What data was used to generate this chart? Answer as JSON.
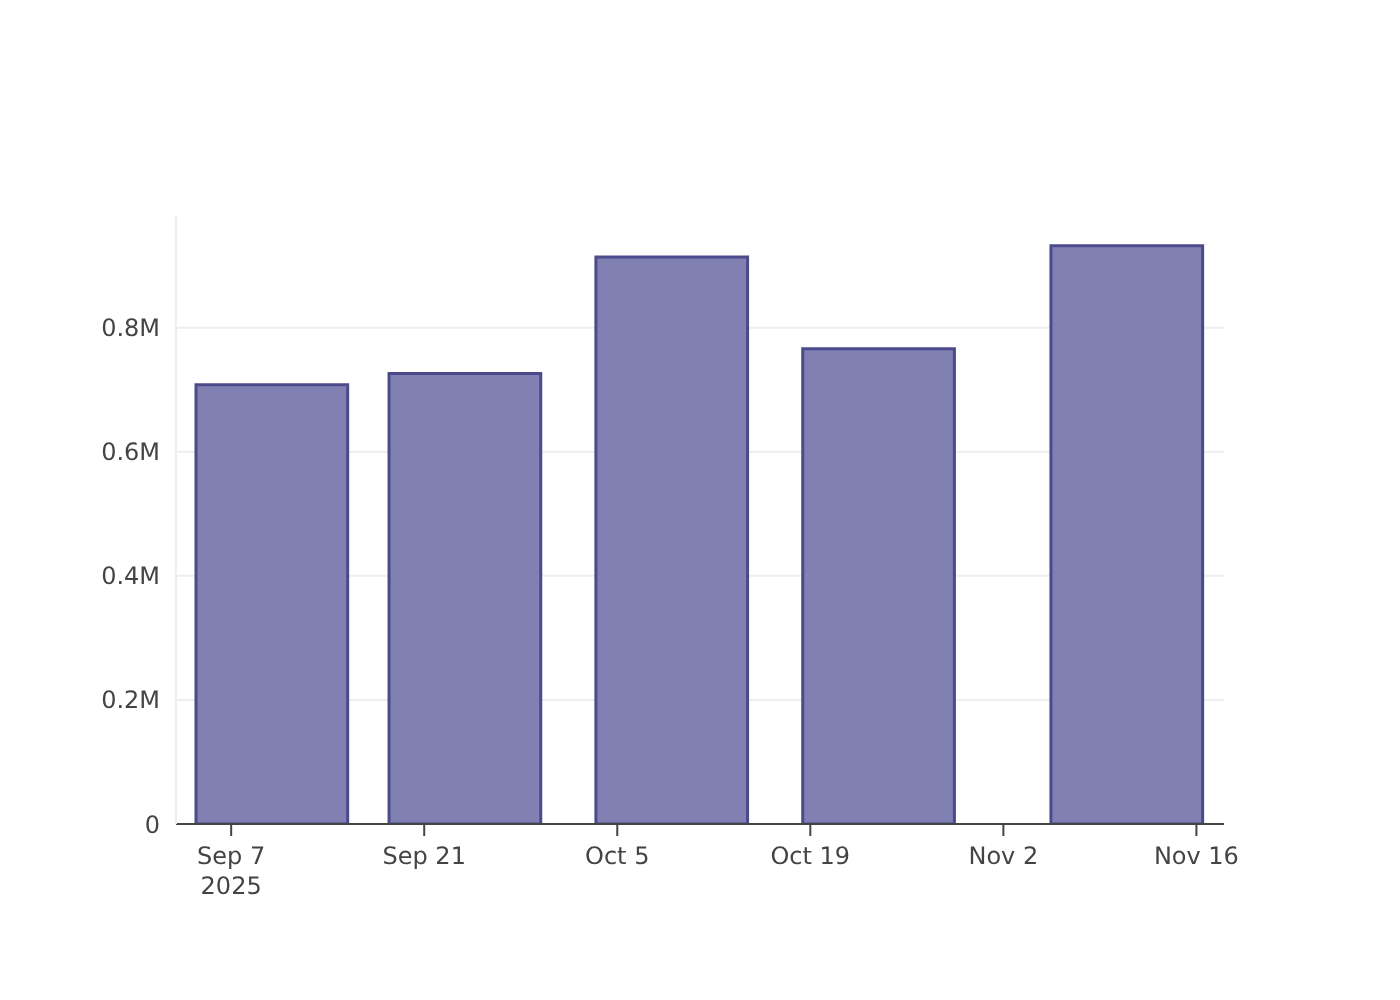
{
  "chart_data": {
    "type": "bar",
    "x": [
      "2025-09-10",
      "2025-09-24",
      "2025-10-09",
      "2025-10-24",
      "2025-11-11"
    ],
    "values": [
      708000,
      726000,
      914000,
      766000,
      932000
    ],
    "color": "#8080b3",
    "xlim": [
      "2025-09-03",
      "2025-11-18"
    ],
    "xticks": [
      {
        "value": "2025-09-07",
        "label": "Sep 7\n2025"
      },
      {
        "value": "2025-09-21",
        "label": "Sep 21"
      },
      {
        "value": "2025-10-05",
        "label": "Oct 5"
      },
      {
        "value": "2025-10-19",
        "label": "Oct 19"
      },
      {
        "value": "2025-11-02",
        "label": "Nov 2"
      },
      {
        "value": "2025-11-16",
        "label": "Nov 16"
      }
    ],
    "ylim": [
      0,
      980000
    ],
    "yticks": [
      0,
      {
        "value": 200000,
        "label": "0.2M"
      },
      {
        "value": 400000,
        "label": "0.4M"
      },
      {
        "value": 600000,
        "label": "0.6M"
      },
      {
        "value": 800000,
        "label": "0.8M"
      }
    ],
    "grid": "y"
  }
}
